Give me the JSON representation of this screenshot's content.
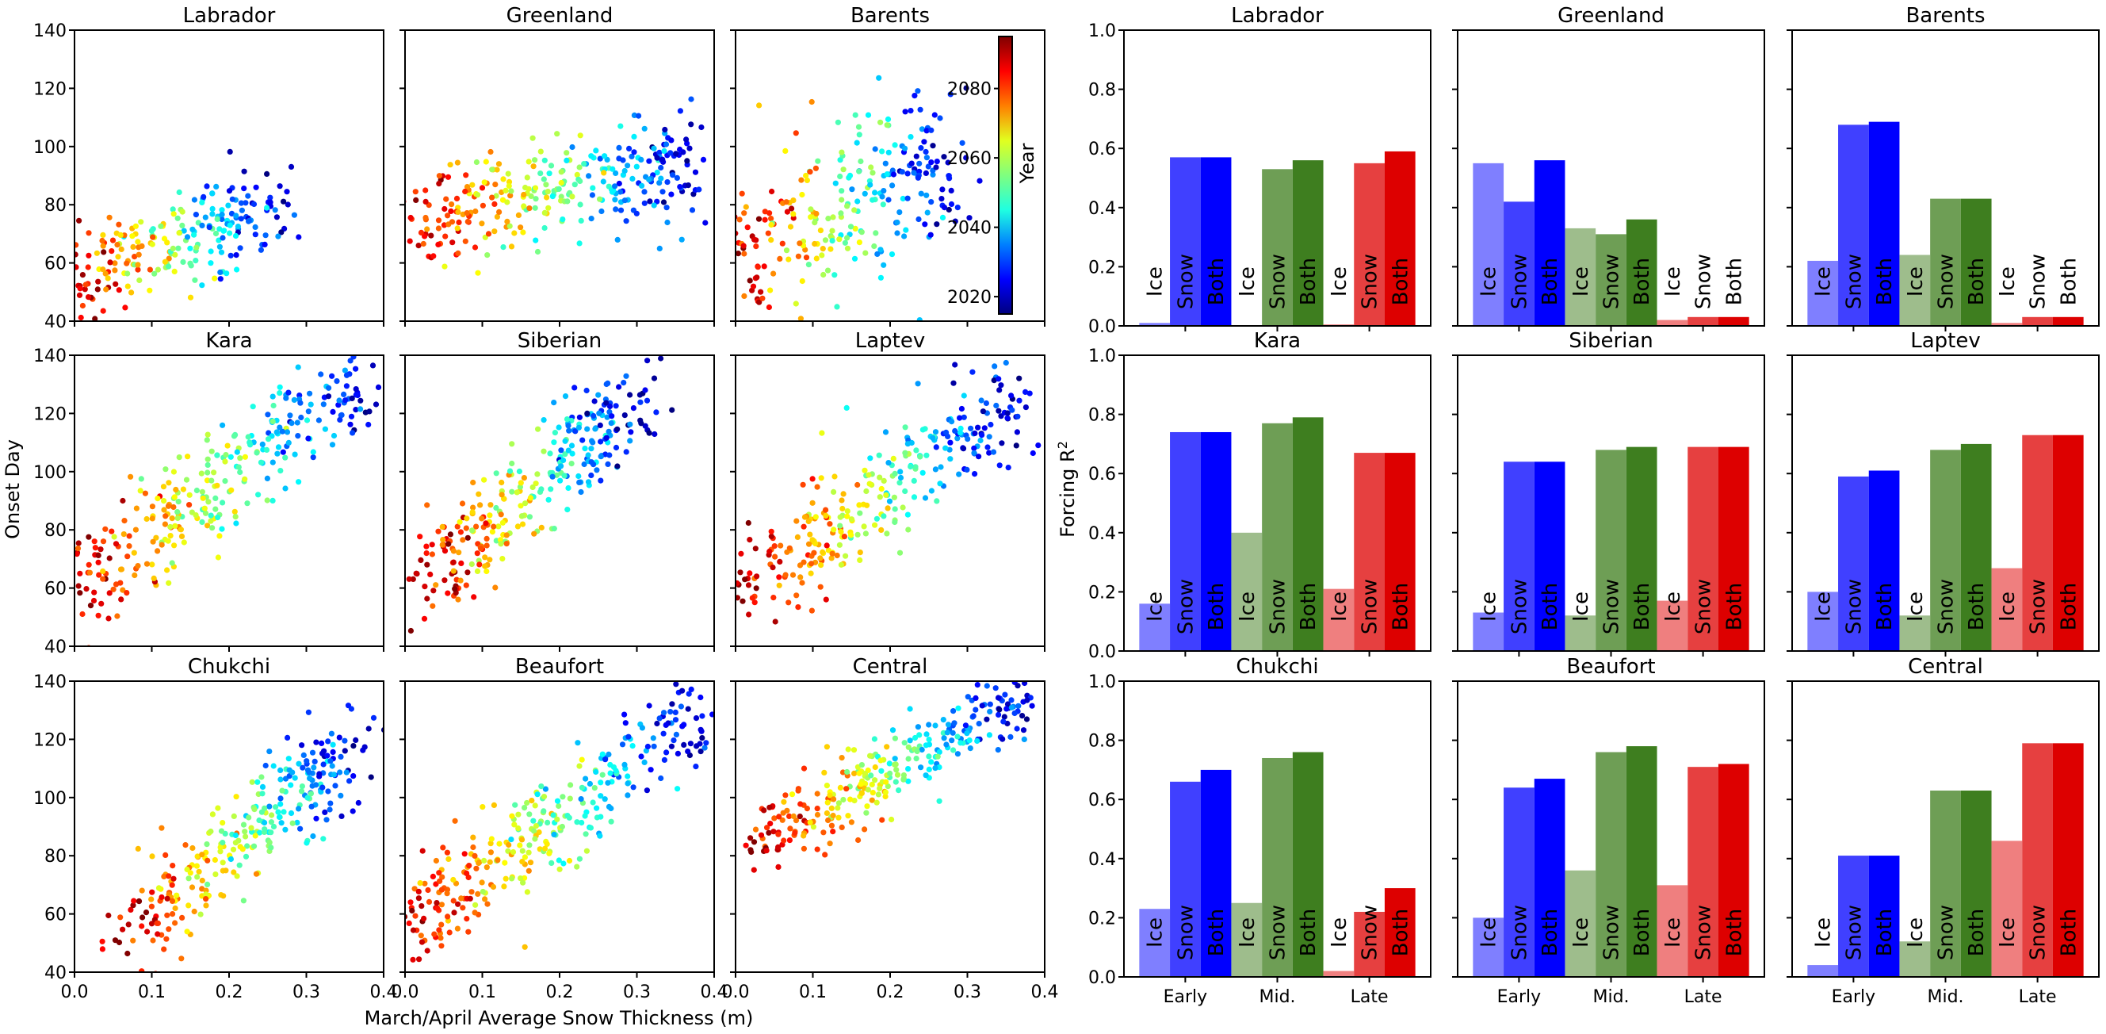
{
  "figure": {
    "scatter_ylabel": "Onset Day",
    "scatter_xlabel": "March/April Average Snow Thickness (m)",
    "bar_ylabel": "Forcing R",
    "bar_ylabel_sup": "2",
    "colorbar_label": "Year",
    "colorbar_ticks": [
      "2020",
      "2040",
      "2060",
      "2080"
    ],
    "colorbar_range": [
      2015,
      2095
    ],
    "colorbar_colors": [
      "#00007f",
      "#0000ff",
      "#007fff",
      "#1fffe1",
      "#7fff7f",
      "#e1ff1f",
      "#ff7f00",
      "#ff0000",
      "#7f0000"
    ]
  },
  "chart_data": [
    {
      "type": "scatter",
      "group": "snow-vs-onset",
      "xlim": [
        0.0,
        0.4
      ],
      "ylim": [
        40,
        140
      ],
      "xticks": [
        "0.0",
        "0.1",
        "0.2",
        "0.3",
        "0.4"
      ],
      "yticks": [
        "40",
        "60",
        "80",
        "100",
        "120",
        "140"
      ],
      "color_by": "Year",
      "panels": [
        {
          "title": "Labrador",
          "trend": {
            "x": [
              0.0,
              0.26
            ],
            "y": [
              54,
              82
            ]
          },
          "spread": 8,
          "n": 240
        },
        {
          "title": "Greenland",
          "trend": {
            "x": [
              0.0,
              0.38
            ],
            "y": [
              76,
              93
            ]
          },
          "spread": 9,
          "n": 320
        },
        {
          "title": "Barents",
          "trend": {
            "x": [
              0.0,
              0.28
            ],
            "y": [
              60,
              97
            ]
          },
          "spread": 14,
          "n": 280
        },
        {
          "title": "Kara",
          "trend": {
            "x": [
              0.0,
              0.38
            ],
            "y": [
              60,
              133
            ]
          },
          "spread": 9,
          "n": 320
        },
        {
          "title": "Siberian",
          "trend": {
            "x": [
              0.03,
              0.3
            ],
            "y": [
              64,
              125
            ]
          },
          "spread": 8,
          "n": 300
        },
        {
          "title": "Laptev",
          "trend": {
            "x": [
              0.02,
              0.36
            ],
            "y": [
              58,
              128
            ]
          },
          "spread": 9,
          "n": 300
        },
        {
          "title": "Chukchi",
          "trend": {
            "x": [
              0.07,
              0.37
            ],
            "y": [
              55,
              118
            ]
          },
          "spread": 8,
          "n": 300
        },
        {
          "title": "Beaufort",
          "trend": {
            "x": [
              0.0,
              0.38
            ],
            "y": [
              55,
              128
            ]
          },
          "spread": 8,
          "n": 320
        },
        {
          "title": "Central",
          "trend": {
            "x": [
              0.03,
              0.38
            ],
            "y": [
              84,
              136
            ]
          },
          "spread": 6,
          "n": 300
        }
      ]
    },
    {
      "type": "bar",
      "group": "forcing-r2",
      "ylim": [
        0.0,
        1.0
      ],
      "yticks": [
        "0.0",
        "0.2",
        "0.4",
        "0.6",
        "0.8",
        "1.0"
      ],
      "categories": [
        "Early",
        "Mid.",
        "Late"
      ],
      "bar_labels": [
        "Ice",
        "Snow",
        "Both"
      ],
      "colors": {
        "Early": [
          "#7f7fff",
          "#4040ff",
          "#0000ff"
        ],
        "Mid.": [
          "#9ebd8c",
          "#6e9e55",
          "#3e7e1f"
        ],
        "Late": [
          "#ef7f7f",
          "#e64040",
          "#dd0000"
        ]
      },
      "panels": [
        {
          "title": "Labrador",
          "values": {
            "Early": [
              0.01,
              0.57,
              0.57
            ],
            "Mid.": [
              0.0,
              0.53,
              0.56
            ],
            "Late": [
              0.005,
              0.55,
              0.59
            ]
          }
        },
        {
          "title": "Greenland",
          "values": {
            "Early": [
              0.55,
              0.42,
              0.56
            ],
            "Mid.": [
              0.33,
              0.31,
              0.36
            ],
            "Late": [
              0.02,
              0.03,
              0.03
            ]
          }
        },
        {
          "title": "Barents",
          "values": {
            "Early": [
              0.22,
              0.68,
              0.69
            ],
            "Mid.": [
              0.24,
              0.43,
              0.43
            ],
            "Late": [
              0.01,
              0.03,
              0.03
            ]
          }
        },
        {
          "title": "Kara",
          "values": {
            "Early": [
              0.16,
              0.74,
              0.74
            ],
            "Mid.": [
              0.4,
              0.77,
              0.79
            ],
            "Late": [
              0.21,
              0.67,
              0.67
            ]
          }
        },
        {
          "title": "Siberian",
          "values": {
            "Early": [
              0.13,
              0.64,
              0.64
            ],
            "Mid.": [
              0.12,
              0.68,
              0.69
            ],
            "Late": [
              0.17,
              0.69,
              0.69
            ]
          }
        },
        {
          "title": "Laptev",
          "values": {
            "Early": [
              0.2,
              0.59,
              0.61
            ],
            "Mid.": [
              0.12,
              0.68,
              0.7
            ],
            "Late": [
              0.28,
              0.73,
              0.73
            ]
          }
        },
        {
          "title": "Chukchi",
          "values": {
            "Early": [
              0.23,
              0.66,
              0.7
            ],
            "Mid.": [
              0.25,
              0.74,
              0.76
            ],
            "Late": [
              0.02,
              0.22,
              0.3
            ]
          }
        },
        {
          "title": "Beaufort",
          "values": {
            "Early": [
              0.2,
              0.64,
              0.67
            ],
            "Mid.": [
              0.36,
              0.76,
              0.78
            ],
            "Late": [
              0.31,
              0.71,
              0.72
            ]
          }
        },
        {
          "title": "Central",
          "values": {
            "Early": [
              0.04,
              0.41,
              0.41
            ],
            "Mid.": [
              0.12,
              0.63,
              0.63
            ],
            "Late": [
              0.46,
              0.79,
              0.79
            ]
          }
        }
      ]
    }
  ]
}
